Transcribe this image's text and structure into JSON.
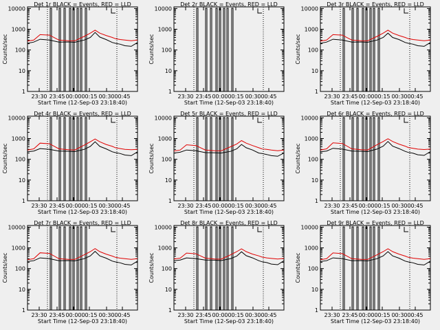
{
  "figure": {
    "xlabel": "Start Time (12-Sep-03 23:18:40)",
    "ylabel": "Counts/sec"
  },
  "chart_data": [
    {
      "type": "line",
      "title": "Det 1r  BLACK = Events, RED = LLD",
      "xlabel": "Start Time (12-Sep-03 23:18:40)",
      "ylabel": "Counts/sec",
      "x_tick_labels": [
        "23:30",
        "23:45",
        "00:00",
        "00:15",
        "00:30",
        "00:45"
      ],
      "y_tick_labels": [
        "1",
        "10",
        "100",
        "1000",
        "10000"
      ],
      "ylim": [
        1,
        12000
      ],
      "yscale": "log",
      "series": [
        {
          "name": "Events",
          "color": "#000000",
          "x": [
            0,
            8,
            16,
            28,
            40,
            52,
            60,
            72,
            80,
            86,
            92,
            100,
            108,
            112,
            118,
            124,
            132,
            140
          ],
          "y": [
            210,
            240,
            330,
            300,
            240,
            245,
            235,
            300,
            400,
            700,
            420,
            320,
            230,
            210,
            190,
            160,
            150,
            230
          ]
        },
        {
          "name": "LLD",
          "color": "#e00000",
          "x": [
            0,
            8,
            16,
            28,
            40,
            52,
            60,
            72,
            80,
            86,
            92,
            100,
            108,
            112,
            118,
            124,
            132,
            140
          ],
          "y": [
            270,
            300,
            550,
            520,
            300,
            280,
            275,
            450,
            650,
            900,
            650,
            500,
            400,
            350,
            320,
            300,
            280,
            300
          ]
        }
      ]
    },
    {
      "type": "line",
      "title": "Det 2r  BLACK = Events, RED = LLD",
      "xlabel": "Start Time (12-Sep-03 23:18:40)",
      "ylabel": "Counts/sec",
      "x_tick_labels": [
        "23:30",
        "23:45",
        "00:00",
        "00:15",
        "00:30",
        "00:45"
      ],
      "y_tick_labels": [
        "1",
        "10",
        "100",
        "1000",
        "10000"
      ],
      "ylim": [
        1,
        12000
      ],
      "yscale": "log",
      "series": []
    },
    {
      "type": "line",
      "title": "Det 3r  BLACK = Events, RED = LLD",
      "xlabel": "Start Time (12-Sep-03 23:18:40)",
      "ylabel": "Counts/sec",
      "x_tick_labels": [
        "23:30",
        "23:45",
        "00:00",
        "00:15",
        "00:30",
        "00:45"
      ],
      "y_tick_labels": [
        "1",
        "10",
        "100",
        "1000",
        "10000"
      ],
      "ylim": [
        1,
        12000
      ],
      "yscale": "log",
      "series": [
        {
          "name": "Events",
          "color": "#000000",
          "x": [
            0,
            8,
            16,
            28,
            40,
            52,
            60,
            72,
            80,
            86,
            92,
            100,
            108,
            112,
            118,
            124,
            132,
            140
          ],
          "y": [
            210,
            240,
            330,
            300,
            240,
            245,
            235,
            300,
            400,
            650,
            400,
            320,
            230,
            210,
            190,
            160,
            150,
            230
          ]
        },
        {
          "name": "LLD",
          "color": "#e00000",
          "x": [
            0,
            8,
            16,
            28,
            40,
            52,
            60,
            72,
            80,
            86,
            92,
            100,
            108,
            112,
            118,
            124,
            132,
            140
          ],
          "y": [
            270,
            300,
            550,
            520,
            300,
            280,
            275,
            450,
            650,
            900,
            650,
            500,
            400,
            350,
            320,
            300,
            280,
            300
          ]
        }
      ]
    },
    {
      "type": "line",
      "title": "Det 4r  BLACK = Events, RED = LLD",
      "xlabel": "Start Time (12-Sep-03 23:18:40)",
      "ylabel": "Counts/sec",
      "x_tick_labels": [
        "23:30",
        "23:45",
        "00:00",
        "00:15",
        "00:30",
        "00:45"
      ],
      "y_tick_labels": [
        "1",
        "10",
        "100",
        "1000",
        "10000"
      ],
      "ylim": [
        1,
        12000
      ],
      "yscale": "log",
      "series": [
        {
          "name": "Events",
          "color": "#000000",
          "x": [
            0,
            8,
            16,
            28,
            40,
            52,
            60,
            72,
            80,
            86,
            92,
            100,
            108,
            112,
            118,
            124,
            132,
            140
          ],
          "y": [
            230,
            250,
            330,
            300,
            250,
            245,
            235,
            300,
            420,
            700,
            420,
            320,
            230,
            210,
            190,
            160,
            150,
            230
          ]
        },
        {
          "name": "LLD",
          "color": "#e00000",
          "x": [
            0,
            8,
            16,
            28,
            40,
            52,
            60,
            72,
            80,
            86,
            92,
            100,
            108,
            112,
            118,
            124,
            132,
            140
          ],
          "y": [
            280,
            320,
            600,
            560,
            320,
            290,
            280,
            480,
            700,
            950,
            700,
            520,
            420,
            360,
            330,
            300,
            290,
            300
          ]
        }
      ]
    },
    {
      "type": "line",
      "title": "Det 5r  BLACK = Events, RED = LLD",
      "xlabel": "Start Time (12-Sep-03 23:18:40)",
      "ylabel": "Counts/sec",
      "x_tick_labels": [
        "23:30",
        "23:45",
        "00:00",
        "00:15",
        "00:30",
        "00:45"
      ],
      "y_tick_labels": [
        "1",
        "10",
        "100",
        "1000",
        "10000"
      ],
      "ylim": [
        1,
        12000
      ],
      "yscale": "log",
      "series": [
        {
          "name": "Events",
          "color": "#000000",
          "x": [
            0,
            8,
            16,
            28,
            40,
            52,
            60,
            72,
            80,
            86,
            92,
            100,
            108,
            112,
            118,
            124,
            132,
            140
          ],
          "y": [
            200,
            220,
            280,
            260,
            210,
            205,
            200,
            240,
            320,
            520,
            360,
            280,
            200,
            190,
            170,
            150,
            140,
            200
          ]
        },
        {
          "name": "LLD",
          "color": "#e00000",
          "x": [
            0,
            8,
            16,
            28,
            40,
            52,
            60,
            72,
            80,
            86,
            92,
            100,
            108,
            112,
            118,
            124,
            132,
            140
          ],
          "y": [
            250,
            280,
            500,
            460,
            280,
            260,
            255,
            400,
            550,
            800,
            600,
            460,
            360,
            320,
            300,
            280,
            260,
            280
          ]
        }
      ]
    },
    {
      "type": "line",
      "title": "Det 6r  BLACK = Events, RED = LLD",
      "xlabel": "Start Time (12-Sep-03 23:18:40)",
      "ylabel": "Counts/sec",
      "x_tick_labels": [
        "23:30",
        "23:45",
        "00:00",
        "00:15",
        "00:30",
        "00:45"
      ],
      "y_tick_labels": [
        "1",
        "10",
        "100",
        "1000",
        "10000"
      ],
      "ylim": [
        1,
        12000
      ],
      "yscale": "log",
      "series": [
        {
          "name": "Events",
          "color": "#000000",
          "x": [
            0,
            8,
            16,
            28,
            40,
            52,
            60,
            72,
            80,
            86,
            92,
            100,
            108,
            112,
            118,
            124,
            132,
            140
          ],
          "y": [
            230,
            250,
            340,
            310,
            250,
            245,
            235,
            310,
            430,
            720,
            430,
            330,
            240,
            215,
            195,
            165,
            155,
            235
          ]
        },
        {
          "name": "LLD",
          "color": "#e00000",
          "x": [
            0,
            8,
            16,
            28,
            40,
            52,
            60,
            72,
            80,
            86,
            92,
            100,
            108,
            112,
            118,
            124,
            132,
            140
          ],
          "y": [
            280,
            320,
            620,
            580,
            320,
            290,
            280,
            500,
            720,
            980,
            720,
            540,
            430,
            370,
            340,
            310,
            295,
            310
          ]
        }
      ]
    },
    {
      "type": "line",
      "title": "Det 7r  BLACK = Events, RED = LLD",
      "xlabel": "Start Time (12-Sep-03 23:18:40)",
      "ylabel": "Counts/sec",
      "x_tick_labels": [
        "23:30",
        "23:45",
        "00:00",
        "00:15",
        "00:30",
        "00:45"
      ],
      "y_tick_labels": [
        "1",
        "10",
        "100",
        "1000",
        "10000"
      ],
      "ylim": [
        1,
        12000
      ],
      "yscale": "log",
      "series": [
        {
          "name": "Events",
          "color": "#000000",
          "x": [
            0,
            8,
            16,
            28,
            40,
            52,
            60,
            72,
            80,
            86,
            92,
            100,
            108,
            112,
            118,
            124,
            132,
            140
          ],
          "y": [
            220,
            240,
            330,
            300,
            240,
            245,
            235,
            300,
            410,
            680,
            410,
            320,
            230,
            210,
            190,
            160,
            150,
            230
          ]
        },
        {
          "name": "LLD",
          "color": "#e00000",
          "x": [
            0,
            8,
            16,
            28,
            40,
            52,
            60,
            72,
            80,
            86,
            92,
            100,
            108,
            112,
            118,
            124,
            132,
            140
          ],
          "y": [
            270,
            300,
            580,
            540,
            300,
            280,
            275,
            460,
            660,
            920,
            660,
            500,
            400,
            350,
            320,
            300,
            280,
            300
          ]
        }
      ]
    },
    {
      "type": "line",
      "title": "Det 8r  BLACK = Events, RED = LLD",
      "xlabel": "Start Time (12-Sep-03 23:18:40)",
      "ylabel": "Counts/sec",
      "x_tick_labels": [
        "23:30",
        "23:45",
        "00:00",
        "00:15",
        "00:30",
        "00:45"
      ],
      "y_tick_labels": [
        "1",
        "10",
        "100",
        "1000",
        "10000"
      ],
      "ylim": [
        1,
        12000
      ],
      "yscale": "log",
      "series": [
        {
          "name": "Events",
          "color": "#000000",
          "x": [
            0,
            8,
            16,
            28,
            40,
            52,
            60,
            72,
            80,
            86,
            92,
            100,
            108,
            112,
            118,
            124,
            132,
            140
          ],
          "y": [
            240,
            260,
            330,
            300,
            260,
            255,
            245,
            300,
            400,
            650,
            420,
            330,
            240,
            215,
            195,
            165,
            155,
            240
          ]
        },
        {
          "name": "LLD",
          "color": "#e00000",
          "x": [
            0,
            8,
            16,
            28,
            40,
            52,
            60,
            72,
            80,
            86,
            92,
            100,
            108,
            112,
            118,
            124,
            132,
            140
          ],
          "y": [
            290,
            320,
            560,
            520,
            320,
            290,
            285,
            460,
            660,
            900,
            660,
            500,
            410,
            360,
            330,
            310,
            290,
            310
          ]
        }
      ]
    },
    {
      "type": "line",
      "title": "Det 9r  BLACK = Events, RED = LLD",
      "xlabel": "Start Time (12-Sep-03 23:18:40)",
      "ylabel": "Counts/sec",
      "x_tick_labels": [
        "23:30",
        "23:45",
        "00:00",
        "00:15",
        "00:30",
        "00:45"
      ],
      "y_tick_labels": [
        "1",
        "10",
        "100",
        "1000",
        "10000"
      ],
      "ylim": [
        1,
        12000
      ],
      "yscale": "log",
      "series": [
        {
          "name": "Events",
          "color": "#000000",
          "x": [
            0,
            8,
            16,
            28,
            40,
            52,
            60,
            72,
            80,
            86,
            92,
            100,
            108,
            112,
            118,
            124,
            132,
            140
          ],
          "y": [
            220,
            240,
            330,
            300,
            240,
            245,
            235,
            300,
            410,
            660,
            410,
            320,
            230,
            210,
            190,
            160,
            150,
            230
          ]
        },
        {
          "name": "LLD",
          "color": "#e00000",
          "x": [
            0,
            8,
            16,
            28,
            40,
            52,
            60,
            72,
            80,
            86,
            92,
            100,
            108,
            112,
            118,
            124,
            132,
            140
          ],
          "y": [
            270,
            300,
            570,
            530,
            300,
            280,
            275,
            460,
            660,
            910,
            660,
            500,
            400,
            350,
            320,
            300,
            280,
            300
          ]
        }
      ]
    }
  ]
}
